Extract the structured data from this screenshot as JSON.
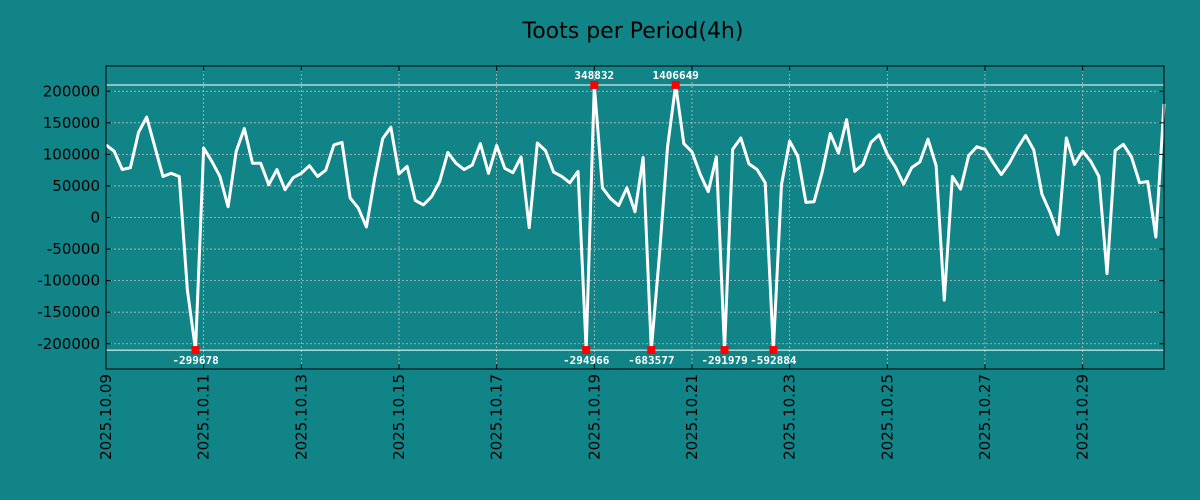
{
  "chart_data": {
    "type": "line",
    "title": "Toots per Period(4h)",
    "xlabel": "",
    "ylabel": "",
    "ylim": [
      -240000,
      240000
    ],
    "clip": [
      -210000,
      210000
    ],
    "grid": true,
    "background_color": "#118488",
    "line_color": "#ffffff",
    "marker_color": "#ff0000",
    "x_tick_labels": [
      "2025.10.09",
      "2025.10.11",
      "2025.10.13",
      "2025.10.15",
      "2025.10.17",
      "2025.10.19",
      "2025.10.21",
      "2025.10.23",
      "2025.10.25",
      "2025.10.27",
      "2025.10.29"
    ],
    "x_tick_index_step": 12,
    "y_ticks": [
      200000,
      150000,
      100000,
      50000,
      0,
      -50000,
      -100000,
      -150000,
      -200000
    ],
    "y_tick_labels": [
      "200000",
      "150000",
      "100000",
      "50000",
      "0",
      "-50000",
      "-100000",
      "-150000",
      "-200000"
    ],
    "values": [
      115000,
      105000,
      76000,
      79000,
      135000,
      159000,
      112000,
      65000,
      70000,
      65000,
      -115000,
      -210000,
      110000,
      89000,
      65000,
      17000,
      105000,
      141000,
      86000,
      86000,
      52000,
      76000,
      44000,
      63000,
      70000,
      82000,
      65000,
      75000,
      115000,
      119000,
      31000,
      15000,
      -15000,
      61000,
      125000,
      143000,
      69000,
      81000,
      27000,
      20000,
      33000,
      57000,
      103000,
      86000,
      76000,
      83000,
      117000,
      70000,
      114000,
      78000,
      71000,
      96000,
      -16000,
      118000,
      106000,
      72000,
      65000,
      55000,
      73000,
      -210000,
      210000,
      47000,
      30000,
      19000,
      47000,
      9000,
      95000,
      -210000,
      -60000,
      112000,
      210000,
      117000,
      104000,
      69000,
      41000,
      96000,
      -210000,
      108000,
      126000,
      85000,
      76000,
      55000,
      -210000,
      52000,
      121000,
      97000,
      24000,
      25000,
      72000,
      133000,
      102000,
      155000,
      73000,
      84000,
      119000,
      131000,
      100000,
      80000,
      53000,
      79000,
      88000,
      124000,
      82000,
      -131000,
      65000,
      45000,
      98000,
      112000,
      108000,
      87000,
      68000,
      86000,
      110000,
      130000,
      107000,
      37000,
      8000,
      -27000,
      126000,
      84000,
      105000,
      89000,
      65000,
      -89000,
      106000,
      116000,
      96000,
      55000,
      57000,
      -31000,
      180000
    ],
    "annotations": [
      {
        "index": 11,
        "label": "-299678",
        "position": "below"
      },
      {
        "index": 59,
        "label": "-294966",
        "position": "below"
      },
      {
        "index": 60,
        "label": "348832",
        "position": "above"
      },
      {
        "index": 67,
        "label": "-683577",
        "position": "below"
      },
      {
        "index": 70,
        "label": "1406649",
        "position": "above"
      },
      {
        "index": 76,
        "label": "-291979",
        "position": "below"
      },
      {
        "index": 82,
        "label": "-592884",
        "position": "below"
      }
    ]
  }
}
